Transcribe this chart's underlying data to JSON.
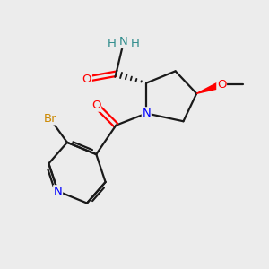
{
  "background_color": "#ececec",
  "bond_color": "#1a1a1a",
  "N_color": "#0000ff",
  "O_color": "#ff0000",
  "Br_color": "#cc8800",
  "H_color": "#2e8b8b",
  "figsize": [
    3.0,
    3.0
  ],
  "dpi": 100,
  "xlim": [
    0,
    10
  ],
  "ylim": [
    0,
    10
  ]
}
